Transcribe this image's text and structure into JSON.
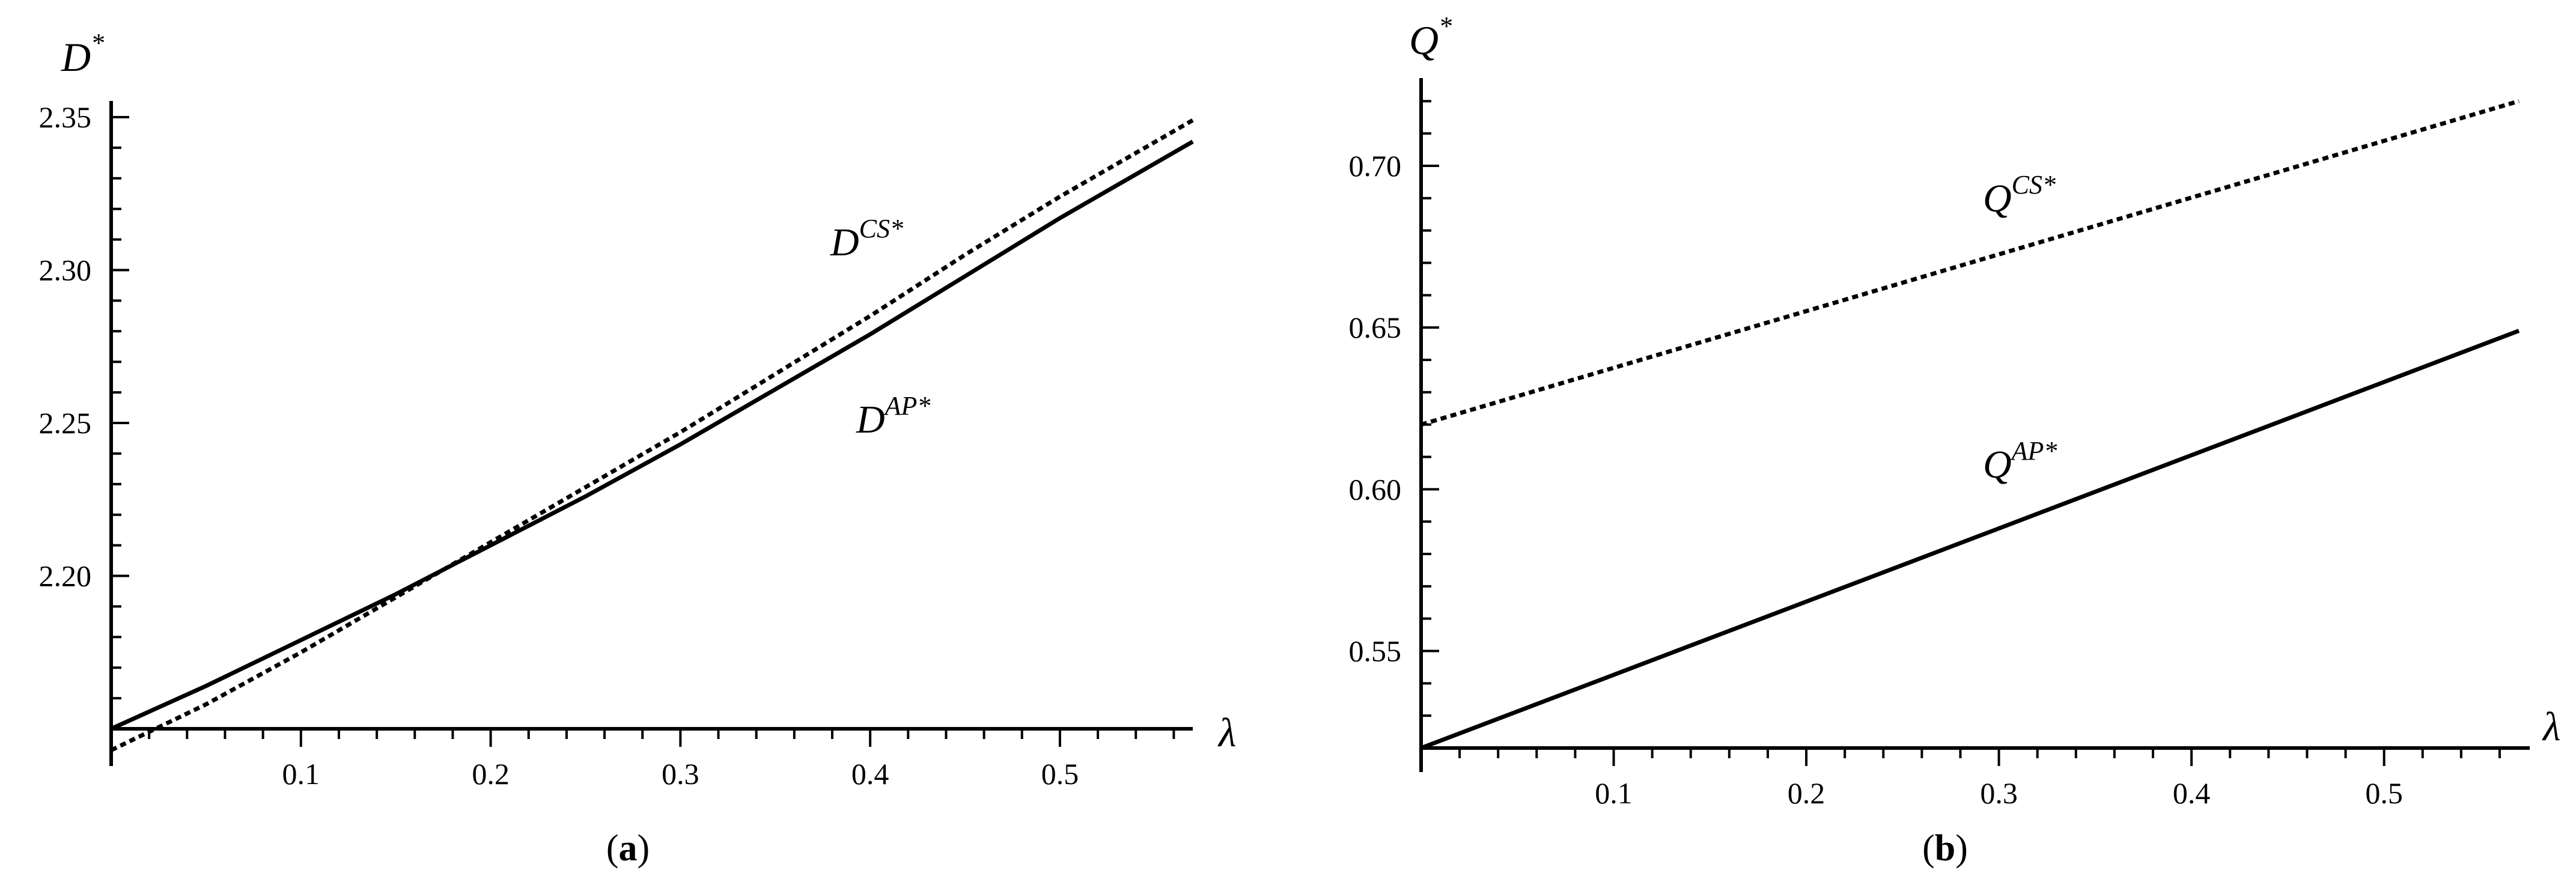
{
  "chart_data": [
    {
      "type": "line",
      "panel_label": "a",
      "xlabel": "λ",
      "ylabel": "D",
      "ylabel_sup": "*",
      "xlim": [
        0,
        0.57
      ],
      "ylim": [
        2.15,
        2.355
      ],
      "x_ticks": [
        "0.1",
        "0.2",
        "0.3",
        "0.4",
        "0.5"
      ],
      "y_ticks": [
        "2.20",
        "2.25",
        "2.30",
        "2.35"
      ],
      "series": [
        {
          "name": "D",
          "name_sup": "CS*",
          "style": "dotted",
          "x": [
            0.0,
            0.05,
            0.1,
            0.15,
            0.2,
            0.25,
            0.3,
            0.35,
            0.4,
            0.45,
            0.5,
            0.57
          ],
          "y": [
            2.143,
            2.158,
            2.175,
            2.193,
            2.211,
            2.229,
            2.247,
            2.266,
            2.285,
            2.305,
            2.324,
            2.349
          ]
        },
        {
          "name": "D",
          "name_sup": "AP*",
          "style": "solid",
          "x": [
            0.0,
            0.05,
            0.1,
            0.15,
            0.2,
            0.25,
            0.3,
            0.35,
            0.4,
            0.45,
            0.5,
            0.57
          ],
          "y": [
            2.15,
            2.164,
            2.179,
            2.194,
            2.21,
            2.226,
            2.243,
            2.261,
            2.279,
            2.298,
            2.317,
            2.342
          ]
        }
      ]
    },
    {
      "type": "line",
      "panel_label": "b",
      "xlabel": "λ",
      "ylabel": "Q",
      "ylabel_sup": "*",
      "xlim": [
        0,
        0.57
      ],
      "ylim": [
        0.52,
        0.725
      ],
      "x_ticks": [
        "0.1",
        "0.2",
        "0.3",
        "0.4",
        "0.5"
      ],
      "y_ticks": [
        "0.55",
        "0.60",
        "0.65",
        "0.70"
      ],
      "series": [
        {
          "name": "Q",
          "name_sup": "CS*",
          "style": "dotted",
          "x": [
            0.0,
            0.57
          ],
          "y": [
            0.62,
            0.72
          ]
        },
        {
          "name": "Q",
          "name_sup": "AP*",
          "style": "solid",
          "x": [
            0.0,
            0.57
          ],
          "y": [
            0.52,
            0.649
          ]
        }
      ]
    }
  ]
}
